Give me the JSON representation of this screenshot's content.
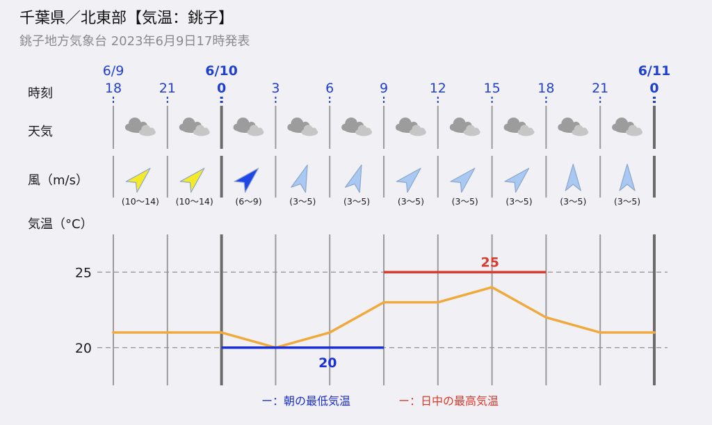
{
  "header": {
    "title": "千葉県／北東部【気温：銚子】",
    "subtitle": "銚子地方気象台 2023年6月9日17時発表"
  },
  "rows": {
    "time_label": "時刻",
    "weather_label": "天気",
    "wind_label": "風（m/s）",
    "temp_label": "気温（°C）"
  },
  "dates": [
    {
      "label": "6/9",
      "bold": false,
      "at_hour_index": 0
    },
    {
      "label": "6/10",
      "bold": true,
      "at_hour_index": 2
    },
    {
      "label": "6/11",
      "bold": true,
      "at_hour_index": 10
    }
  ],
  "hours": [
    {
      "label": "18",
      "bold": false
    },
    {
      "label": "21",
      "bold": false
    },
    {
      "label": "0",
      "bold": true
    },
    {
      "label": "3",
      "bold": false
    },
    {
      "label": "6",
      "bold": false
    },
    {
      "label": "9",
      "bold": false
    },
    {
      "label": "12",
      "bold": false
    },
    {
      "label": "15",
      "bold": false
    },
    {
      "label": "18",
      "bold": false
    },
    {
      "label": "21",
      "bold": false
    },
    {
      "label": "0",
      "bold": true
    }
  ],
  "weather": [
    "cloud-icon",
    "cloud-icon",
    "cloud-icon",
    "cloud-icon",
    "cloud-icon",
    "cloud-icon",
    "cloud-icon",
    "cloud-icon",
    "cloud-icon",
    "cloud-icon"
  ],
  "wind": [
    {
      "speed": "(10〜14)",
      "direction_deg": 225,
      "color": "#f5ea2a"
    },
    {
      "speed": "(10〜14)",
      "direction_deg": 225,
      "color": "#f5ea2a"
    },
    {
      "speed": "(6〜9)",
      "direction_deg": 225,
      "color": "#2146e8"
    },
    {
      "speed": "(3〜5)",
      "direction_deg": 200,
      "color": "#a9c8f2"
    },
    {
      "speed": "(3〜5)",
      "direction_deg": 200,
      "color": "#a9c8f2"
    },
    {
      "speed": "(3〜5)",
      "direction_deg": 225,
      "color": "#a9c8f2"
    },
    {
      "speed": "(3〜5)",
      "direction_deg": 225,
      "color": "#a9c8f2"
    },
    {
      "speed": "(3〜5)",
      "direction_deg": 225,
      "color": "#a9c8f2"
    },
    {
      "speed": "(3〜5)",
      "direction_deg": 180,
      "color": "#a9c8f2"
    },
    {
      "speed": "(3〜5)",
      "direction_deg": 180,
      "color": "#a9c8f2"
    }
  ],
  "chart_data": {
    "type": "line",
    "x": [
      "18",
      "21",
      "0",
      "3",
      "6",
      "9",
      "12",
      "15",
      "18",
      "21",
      "0"
    ],
    "y_ticks": [
      "25",
      "20"
    ],
    "ylim": [
      17.5,
      27.5
    ],
    "grid": true,
    "series": [
      {
        "values": [
          21,
          21,
          21,
          20,
          21,
          23,
          23,
          24,
          22,
          21,
          21
        ],
        "color": "#f0a93c"
      }
    ],
    "min_temp": {
      "value": 20,
      "label": "20",
      "from_index": 2,
      "to_index": 5,
      "color": "#1a2fd6"
    },
    "max_temp": {
      "value": 25,
      "label": "25",
      "from_index": 5,
      "to_index": 8,
      "color": "#dc3a2c"
    }
  },
  "legend": {
    "min_marker": "ー",
    "min_label": "：朝の最低気温",
    "max_marker": "ー",
    "max_label": "：日中の最高気温",
    "min_color": "#1a2fd6",
    "max_color": "#dc3a2c"
  }
}
